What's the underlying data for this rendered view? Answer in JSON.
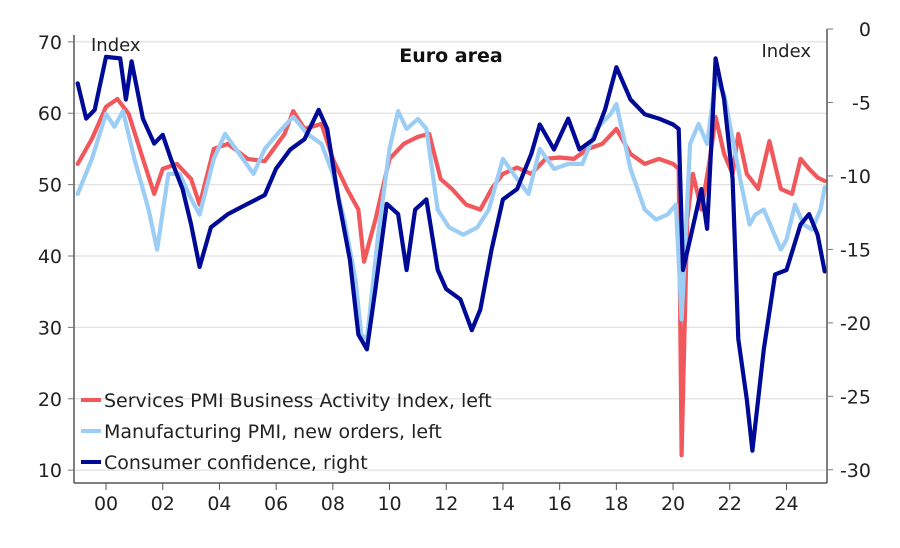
{
  "chart_data": {
    "type": "line",
    "title": "Euro area",
    "left_axis": {
      "label": "Index",
      "ticks": [
        10,
        20,
        30,
        40,
        50,
        60,
        70
      ],
      "range": [
        8.2,
        71.8
      ]
    },
    "right_axis": {
      "label": "Index",
      "ticks": [
        0,
        -5,
        -10,
        -15,
        -20,
        -25,
        -30
      ],
      "range": [
        -30.9,
        0.0
      ]
    },
    "x_axis": {
      "range": [
        1998.87,
        2025.43
      ],
      "ticks": [
        2000,
        2002,
        2004,
        2006,
        2008,
        2010,
        2012,
        2014,
        2016,
        2018,
        2020,
        2022,
        2024
      ],
      "tick_labels": [
        "00",
        "02",
        "04",
        "06",
        "08",
        "10",
        "12",
        "14",
        "16",
        "18",
        "20",
        "22",
        "24"
      ]
    },
    "grid": true,
    "legend_position": "bottom-left",
    "series": [
      {
        "name": "Services PMI Business Activity Index, left",
        "axis": "left",
        "color": "#f0585c",
        "points": [
          [
            1999.0,
            52.9
          ],
          [
            1999.5,
            56.4
          ],
          [
            2000.0,
            60.9
          ],
          [
            2000.4,
            62.0
          ],
          [
            2000.8,
            59.9
          ],
          [
            2001.3,
            53.6
          ],
          [
            2001.7,
            48.7
          ],
          [
            2002.0,
            52.2
          ],
          [
            2002.5,
            52.9
          ],
          [
            2003.0,
            50.8
          ],
          [
            2003.3,
            47.2
          ],
          [
            2003.8,
            55.0
          ],
          [
            2004.3,
            55.7
          ],
          [
            2005.0,
            53.6
          ],
          [
            2005.6,
            53.3
          ],
          [
            2006.3,
            57.1
          ],
          [
            2006.6,
            60.3
          ],
          [
            2007.0,
            57.8
          ],
          [
            2007.6,
            58.5
          ],
          [
            2008.0,
            53.6
          ],
          [
            2008.5,
            49.4
          ],
          [
            2008.9,
            46.5
          ],
          [
            2009.1,
            39.2
          ],
          [
            2009.5,
            45.1
          ],
          [
            2010.0,
            53.6
          ],
          [
            2010.5,
            55.7
          ],
          [
            2011.0,
            56.7
          ],
          [
            2011.4,
            57.1
          ],
          [
            2011.8,
            50.8
          ],
          [
            2012.2,
            49.4
          ],
          [
            2012.7,
            47.2
          ],
          [
            2013.2,
            46.5
          ],
          [
            2013.6,
            49.4
          ],
          [
            2014.0,
            51.5
          ],
          [
            2014.5,
            52.4
          ],
          [
            2015.0,
            51.5
          ],
          [
            2015.5,
            53.6
          ],
          [
            2016.0,
            53.8
          ],
          [
            2016.5,
            53.6
          ],
          [
            2017.0,
            55.0
          ],
          [
            2017.5,
            55.7
          ],
          [
            2018.0,
            57.8
          ],
          [
            2018.5,
            54.3
          ],
          [
            2019.0,
            52.9
          ],
          [
            2019.5,
            53.6
          ],
          [
            2020.0,
            52.9
          ],
          [
            2020.2,
            52.2
          ],
          [
            2020.3,
            12.1
          ],
          [
            2020.5,
            45.1
          ],
          [
            2020.7,
            51.5
          ],
          [
            2021.0,
            46.5
          ],
          [
            2021.3,
            53.6
          ],
          [
            2021.5,
            59.5
          ],
          [
            2021.8,
            54.3
          ],
          [
            2022.1,
            51.5
          ],
          [
            2022.3,
            57.1
          ],
          [
            2022.6,
            51.5
          ],
          [
            2023.0,
            49.4
          ],
          [
            2023.4,
            56.1
          ],
          [
            2023.8,
            49.4
          ],
          [
            2024.2,
            48.7
          ],
          [
            2024.5,
            53.6
          ],
          [
            2024.8,
            52.2
          ],
          [
            2025.1,
            51.0
          ],
          [
            2025.35,
            50.5
          ]
        ]
      },
      {
        "name": "Manufacturing PMI, new orders, left",
        "axis": "left",
        "color": "#9ccdf5",
        "points": [
          [
            1999.0,
            48.7
          ],
          [
            1999.5,
            53.6
          ],
          [
            2000.0,
            59.9
          ],
          [
            2000.3,
            58.1
          ],
          [
            2000.6,
            60.3
          ],
          [
            2001.0,
            53.6
          ],
          [
            2001.5,
            46.5
          ],
          [
            2001.8,
            40.9
          ],
          [
            2002.2,
            51.5
          ],
          [
            2002.6,
            51.5
          ],
          [
            2003.0,
            48.0
          ],
          [
            2003.3,
            45.8
          ],
          [
            2003.8,
            53.6
          ],
          [
            2004.2,
            57.1
          ],
          [
            2004.7,
            54.3
          ],
          [
            2005.2,
            51.5
          ],
          [
            2005.6,
            55.0
          ],
          [
            2006.2,
            57.8
          ],
          [
            2006.6,
            59.5
          ],
          [
            2007.1,
            57.1
          ],
          [
            2007.6,
            55.7
          ],
          [
            2008.0,
            51.5
          ],
          [
            2008.4,
            45.1
          ],
          [
            2008.8,
            36.7
          ],
          [
            2009.0,
            29.0
          ],
          [
            2009.2,
            28.3
          ],
          [
            2009.6,
            43.0
          ],
          [
            2010.0,
            55.0
          ],
          [
            2010.3,
            60.3
          ],
          [
            2010.6,
            57.8
          ],
          [
            2011.0,
            59.2
          ],
          [
            2011.3,
            57.8
          ],
          [
            2011.7,
            46.5
          ],
          [
            2012.1,
            44.0
          ],
          [
            2012.6,
            43.0
          ],
          [
            2013.1,
            44.0
          ],
          [
            2013.5,
            46.5
          ],
          [
            2014.0,
            53.6
          ],
          [
            2014.5,
            50.8
          ],
          [
            2014.9,
            48.7
          ],
          [
            2015.3,
            55.0
          ],
          [
            2015.8,
            52.2
          ],
          [
            2016.3,
            52.9
          ],
          [
            2016.8,
            52.9
          ],
          [
            2017.3,
            57.8
          ],
          [
            2017.8,
            59.9
          ],
          [
            2018.0,
            61.3
          ],
          [
            2018.5,
            52.2
          ],
          [
            2019.0,
            46.5
          ],
          [
            2019.4,
            45.1
          ],
          [
            2019.8,
            45.8
          ],
          [
            2020.1,
            47.2
          ],
          [
            2020.3,
            31.1
          ],
          [
            2020.6,
            55.7
          ],
          [
            2020.9,
            58.5
          ],
          [
            2021.2,
            55.7
          ],
          [
            2021.5,
            64.8
          ],
          [
            2021.8,
            62.7
          ],
          [
            2022.1,
            56.4
          ],
          [
            2022.4,
            50.1
          ],
          [
            2022.7,
            44.4
          ],
          [
            2022.9,
            45.8
          ],
          [
            2023.2,
            46.5
          ],
          [
            2023.5,
            43.7
          ],
          [
            2023.8,
            40.9
          ],
          [
            2024.0,
            42.3
          ],
          [
            2024.3,
            47.2
          ],
          [
            2024.6,
            44.4
          ],
          [
            2024.9,
            43.7
          ],
          [
            2025.2,
            46.5
          ],
          [
            2025.35,
            49.6
          ]
        ]
      },
      {
        "name": "Consumer confidence, right",
        "axis": "right",
        "color": "#000a96",
        "points": [
          [
            1999.0,
            -3.7
          ],
          [
            1999.3,
            -6.1
          ],
          [
            1999.6,
            -5.5
          ],
          [
            2000.0,
            -1.9
          ],
          [
            2000.5,
            -2.0
          ],
          [
            2000.7,
            -4.8
          ],
          [
            2000.9,
            -2.2
          ],
          [
            2001.3,
            -6.1
          ],
          [
            2001.7,
            -7.8
          ],
          [
            2002.0,
            -7.2
          ],
          [
            2002.3,
            -8.9
          ],
          [
            2002.7,
            -10.9
          ],
          [
            2003.0,
            -13.3
          ],
          [
            2003.3,
            -16.2
          ],
          [
            2003.7,
            -13.5
          ],
          [
            2004.3,
            -12.6
          ],
          [
            2005.0,
            -11.9
          ],
          [
            2005.6,
            -11.3
          ],
          [
            2006.0,
            -9.5
          ],
          [
            2006.5,
            -8.2
          ],
          [
            2007.0,
            -7.5
          ],
          [
            2007.5,
            -5.5
          ],
          [
            2007.8,
            -6.8
          ],
          [
            2008.2,
            -11.6
          ],
          [
            2008.6,
            -15.7
          ],
          [
            2008.9,
            -20.8
          ],
          [
            2009.2,
            -21.8
          ],
          [
            2009.5,
            -17.7
          ],
          [
            2009.9,
            -11.9
          ],
          [
            2010.3,
            -12.6
          ],
          [
            2010.6,
            -16.4
          ],
          [
            2010.9,
            -12.3
          ],
          [
            2011.3,
            -11.6
          ],
          [
            2011.7,
            -16.4
          ],
          [
            2012.0,
            -17.7
          ],
          [
            2012.5,
            -18.4
          ],
          [
            2012.9,
            -20.5
          ],
          [
            2013.2,
            -19.1
          ],
          [
            2013.6,
            -15.0
          ],
          [
            2014.0,
            -11.6
          ],
          [
            2014.5,
            -10.9
          ],
          [
            2015.0,
            -8.5
          ],
          [
            2015.3,
            -6.5
          ],
          [
            2015.8,
            -8.2
          ],
          [
            2016.3,
            -6.1
          ],
          [
            2016.7,
            -8.2
          ],
          [
            2017.2,
            -7.5
          ],
          [
            2017.6,
            -5.5
          ],
          [
            2018.0,
            -2.6
          ],
          [
            2018.5,
            -4.8
          ],
          [
            2019.0,
            -5.8
          ],
          [
            2019.5,
            -6.1
          ],
          [
            2020.0,
            -6.5
          ],
          [
            2020.2,
            -6.8
          ],
          [
            2020.35,
            -16.4
          ],
          [
            2020.6,
            -14.3
          ],
          [
            2021.0,
            -10.9
          ],
          [
            2021.2,
            -13.6
          ],
          [
            2021.5,
            -2.0
          ],
          [
            2021.8,
            -4.8
          ],
          [
            2022.1,
            -10.2
          ],
          [
            2022.3,
            -21.1
          ],
          [
            2022.6,
            -25.2
          ],
          [
            2022.8,
            -28.7
          ],
          [
            2023.2,
            -21.8
          ],
          [
            2023.6,
            -16.7
          ],
          [
            2024.0,
            -16.4
          ],
          [
            2024.5,
            -13.3
          ],
          [
            2024.8,
            -12.6
          ],
          [
            2025.1,
            -14.0
          ],
          [
            2025.35,
            -16.5
          ]
        ]
      }
    ]
  }
}
